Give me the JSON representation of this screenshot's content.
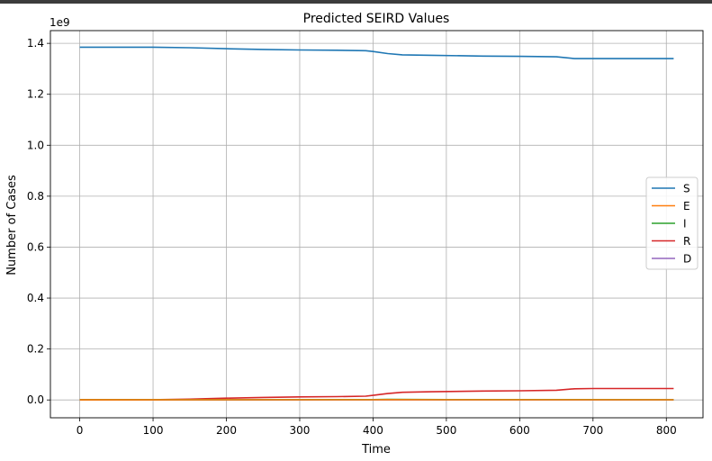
{
  "chart_data": {
    "type": "line",
    "title": "Predicted SEIRD Values",
    "xlabel": "Time",
    "ylabel": "Number of Cases",
    "y_offset_label": "1e9",
    "xlim": [
      -40,
      850
    ],
    "ylim": [
      -0.07,
      1.45
    ],
    "x_ticks": [
      0,
      100,
      200,
      300,
      400,
      500,
      600,
      700,
      800
    ],
    "x_tick_labels": [
      "0",
      "100",
      "200",
      "300",
      "400",
      "500",
      "600",
      "700",
      "800"
    ],
    "y_ticks": [
      0.0,
      0.2,
      0.4,
      0.6,
      0.8,
      1.0,
      1.2,
      1.4
    ],
    "y_tick_labels": [
      "0.0",
      "0.2",
      "0.4",
      "0.6",
      "0.8",
      "1.0",
      "1.2",
      "1.4"
    ],
    "grid": true,
    "legend_position": "center-right",
    "series": [
      {
        "name": "S",
        "color": "#1f77b4",
        "x": [
          0,
          100,
          150,
          200,
          250,
          300,
          350,
          390,
          400,
          420,
          440,
          480,
          550,
          600,
          650,
          675,
          700,
          750,
          810
        ],
        "y": [
          1.385,
          1.385,
          1.383,
          1.379,
          1.376,
          1.374,
          1.373,
          1.371,
          1.368,
          1.36,
          1.355,
          1.353,
          1.35,
          1.349,
          1.347,
          1.34,
          1.34,
          1.34,
          1.34
        ]
      },
      {
        "name": "E",
        "color": "#ff7f0e",
        "x": [
          0,
          200,
          400,
          420,
          500,
          650,
          680,
          810
        ],
        "y": [
          0.0005,
          0.0006,
          0.0008,
          0.001,
          0.0008,
          0.0007,
          0.0008,
          0.0006
        ]
      },
      {
        "name": "I",
        "color": "#2ca02c",
        "x": [
          0,
          200,
          400,
          420,
          500,
          650,
          680,
          810
        ],
        "y": [
          0.001,
          0.0012,
          0.0015,
          0.002,
          0.0015,
          0.0013,
          0.0015,
          0.0012
        ]
      },
      {
        "name": "R",
        "color": "#d62728",
        "x": [
          0,
          100,
          150,
          200,
          250,
          300,
          350,
          390,
          400,
          420,
          440,
          480,
          550,
          600,
          650,
          675,
          700,
          750,
          810
        ],
        "y": [
          0.001,
          0.001,
          0.003,
          0.007,
          0.01,
          0.012,
          0.013,
          0.015,
          0.018,
          0.025,
          0.03,
          0.032,
          0.035,
          0.036,
          0.038,
          0.044,
          0.045,
          0.045,
          0.045
        ]
      },
      {
        "name": "D",
        "color": "#9467bd",
        "x": [
          0,
          200,
          400,
          420,
          500,
          650,
          700,
          810
        ],
        "y": [
          0.0,
          0.0001,
          0.0002,
          0.0003,
          0.0003,
          0.0003,
          0.0004,
          0.0004
        ]
      }
    ]
  }
}
